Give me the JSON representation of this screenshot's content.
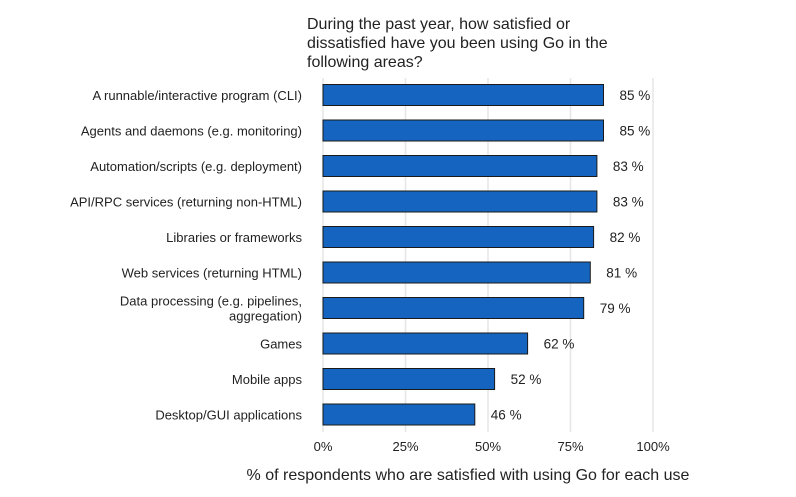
{
  "chart_data": {
    "type": "bar",
    "orientation": "horizontal",
    "title_lines": [
      "During the past year, how satisfied or",
      "dissatisfied have you been using Go in the",
      "following areas?"
    ],
    "xlabel": "% of respondents who are satisfied with using Go for each use",
    "ylabel": "",
    "categories": [
      [
        "A runnable/interactive program (CLI)"
      ],
      [
        "Agents and daemons (e.g. monitoring)"
      ],
      [
        "Automation/scripts (e.g. deployment)"
      ],
      [
        "API/RPC services (returning non-HTML)"
      ],
      [
        "Libraries or frameworks"
      ],
      [
        "Web services (returning HTML)"
      ],
      [
        "Data processing (e.g. pipelines,",
        "aggregation)"
      ],
      [
        "Games"
      ],
      [
        "Mobile apps"
      ],
      [
        "Desktop/GUI applications"
      ]
    ],
    "values": [
      85,
      85,
      83,
      83,
      82,
      81,
      79,
      62,
      52,
      46
    ],
    "value_labels": [
      "85 %",
      "85 %",
      "83 %",
      "83 %",
      "82 %",
      "81 %",
      "79 %",
      "62 %",
      "52 %",
      "46 %"
    ],
    "xticks": [
      0,
      25,
      50,
      75,
      100
    ],
    "xtick_labels": [
      "0%",
      "25%",
      "50%",
      "75%",
      "100%"
    ],
    "xlim": [
      0,
      100
    ],
    "grid": true,
    "bar_color": "#1565C0",
    "bar_edge_color": "#1a1a1a",
    "grid_color": "#e6e6e6"
  }
}
